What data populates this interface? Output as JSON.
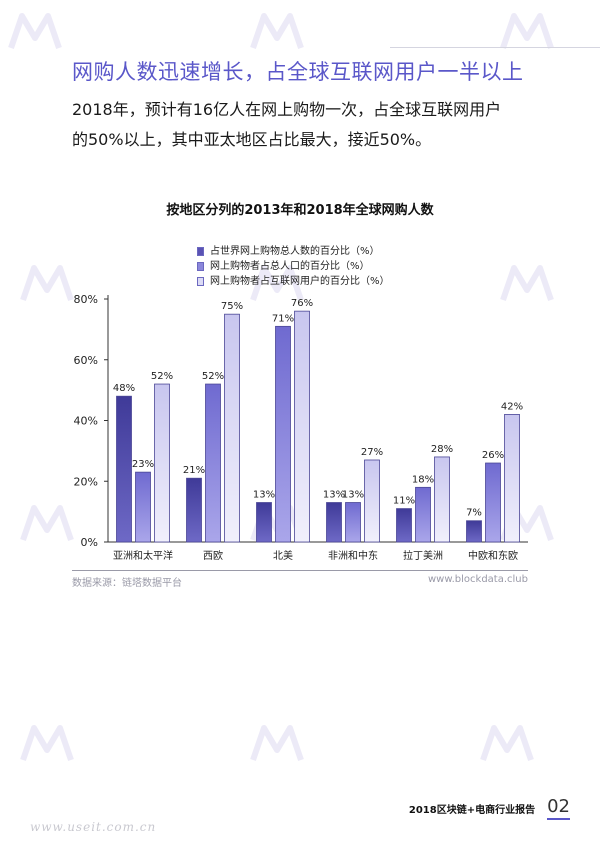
{
  "header": {
    "headline": "网购人数迅速增长，占全球互联网用户一半以上"
  },
  "lead": {
    "line1": "2018年，预计有16亿人在网上购物一次，占全球互联网用户",
    "line2": "的50%以上，其中亚太地区占比最大，接近50%。"
  },
  "colors": {
    "series1_fill": "#5a52b4",
    "series2_fill": "#8b87db",
    "series3_fill": "#dcdbf5",
    "bar_border": "#4b4796",
    "headline": "#5a57c9"
  },
  "chart_data": {
    "type": "bar",
    "title": "按地区分列的2013年和2018年全球网购人数",
    "categories": [
      "亚洲和太平洋",
      "西欧",
      "北美",
      "非洲和中东",
      "拉丁美洲",
      "中欧和东欧"
    ],
    "series": [
      {
        "name": "占世界网上购物总人数的百分比（%）",
        "values": [
          48,
          21,
          13,
          13,
          11,
          7
        ]
      },
      {
        "name": "网上购物者占总人口的百分比（%）",
        "values": [
          23,
          52,
          71,
          13,
          18,
          26
        ]
      },
      {
        "name": "网上购物者占互联网用户的百分比（%）",
        "values": [
          52,
          75,
          76,
          27,
          28,
          42
        ]
      }
    ],
    "data_labels": [
      [
        "48%",
        "21%",
        "13%",
        "13%",
        "11%",
        "7%"
      ],
      [
        "23%",
        "52%",
        "71%",
        "13%",
        "18%",
        "26%"
      ],
      [
        "52%",
        "75%",
        "76%",
        "27%",
        "28%",
        "42%"
      ]
    ],
    "y_ticks": [
      "0%",
      "20%",
      "40%",
      "60%",
      "80%"
    ],
    "ylim": [
      0,
      80
    ],
    "grid": false,
    "legend_position": "top-center"
  },
  "source": {
    "text": "数据来源：链塔数据平台",
    "site": "www.blockdata.club"
  },
  "footer": {
    "report": "2018区块链+电商行业报告",
    "page": "02"
  },
  "bottom_watermark": "www.useit.com.cn"
}
